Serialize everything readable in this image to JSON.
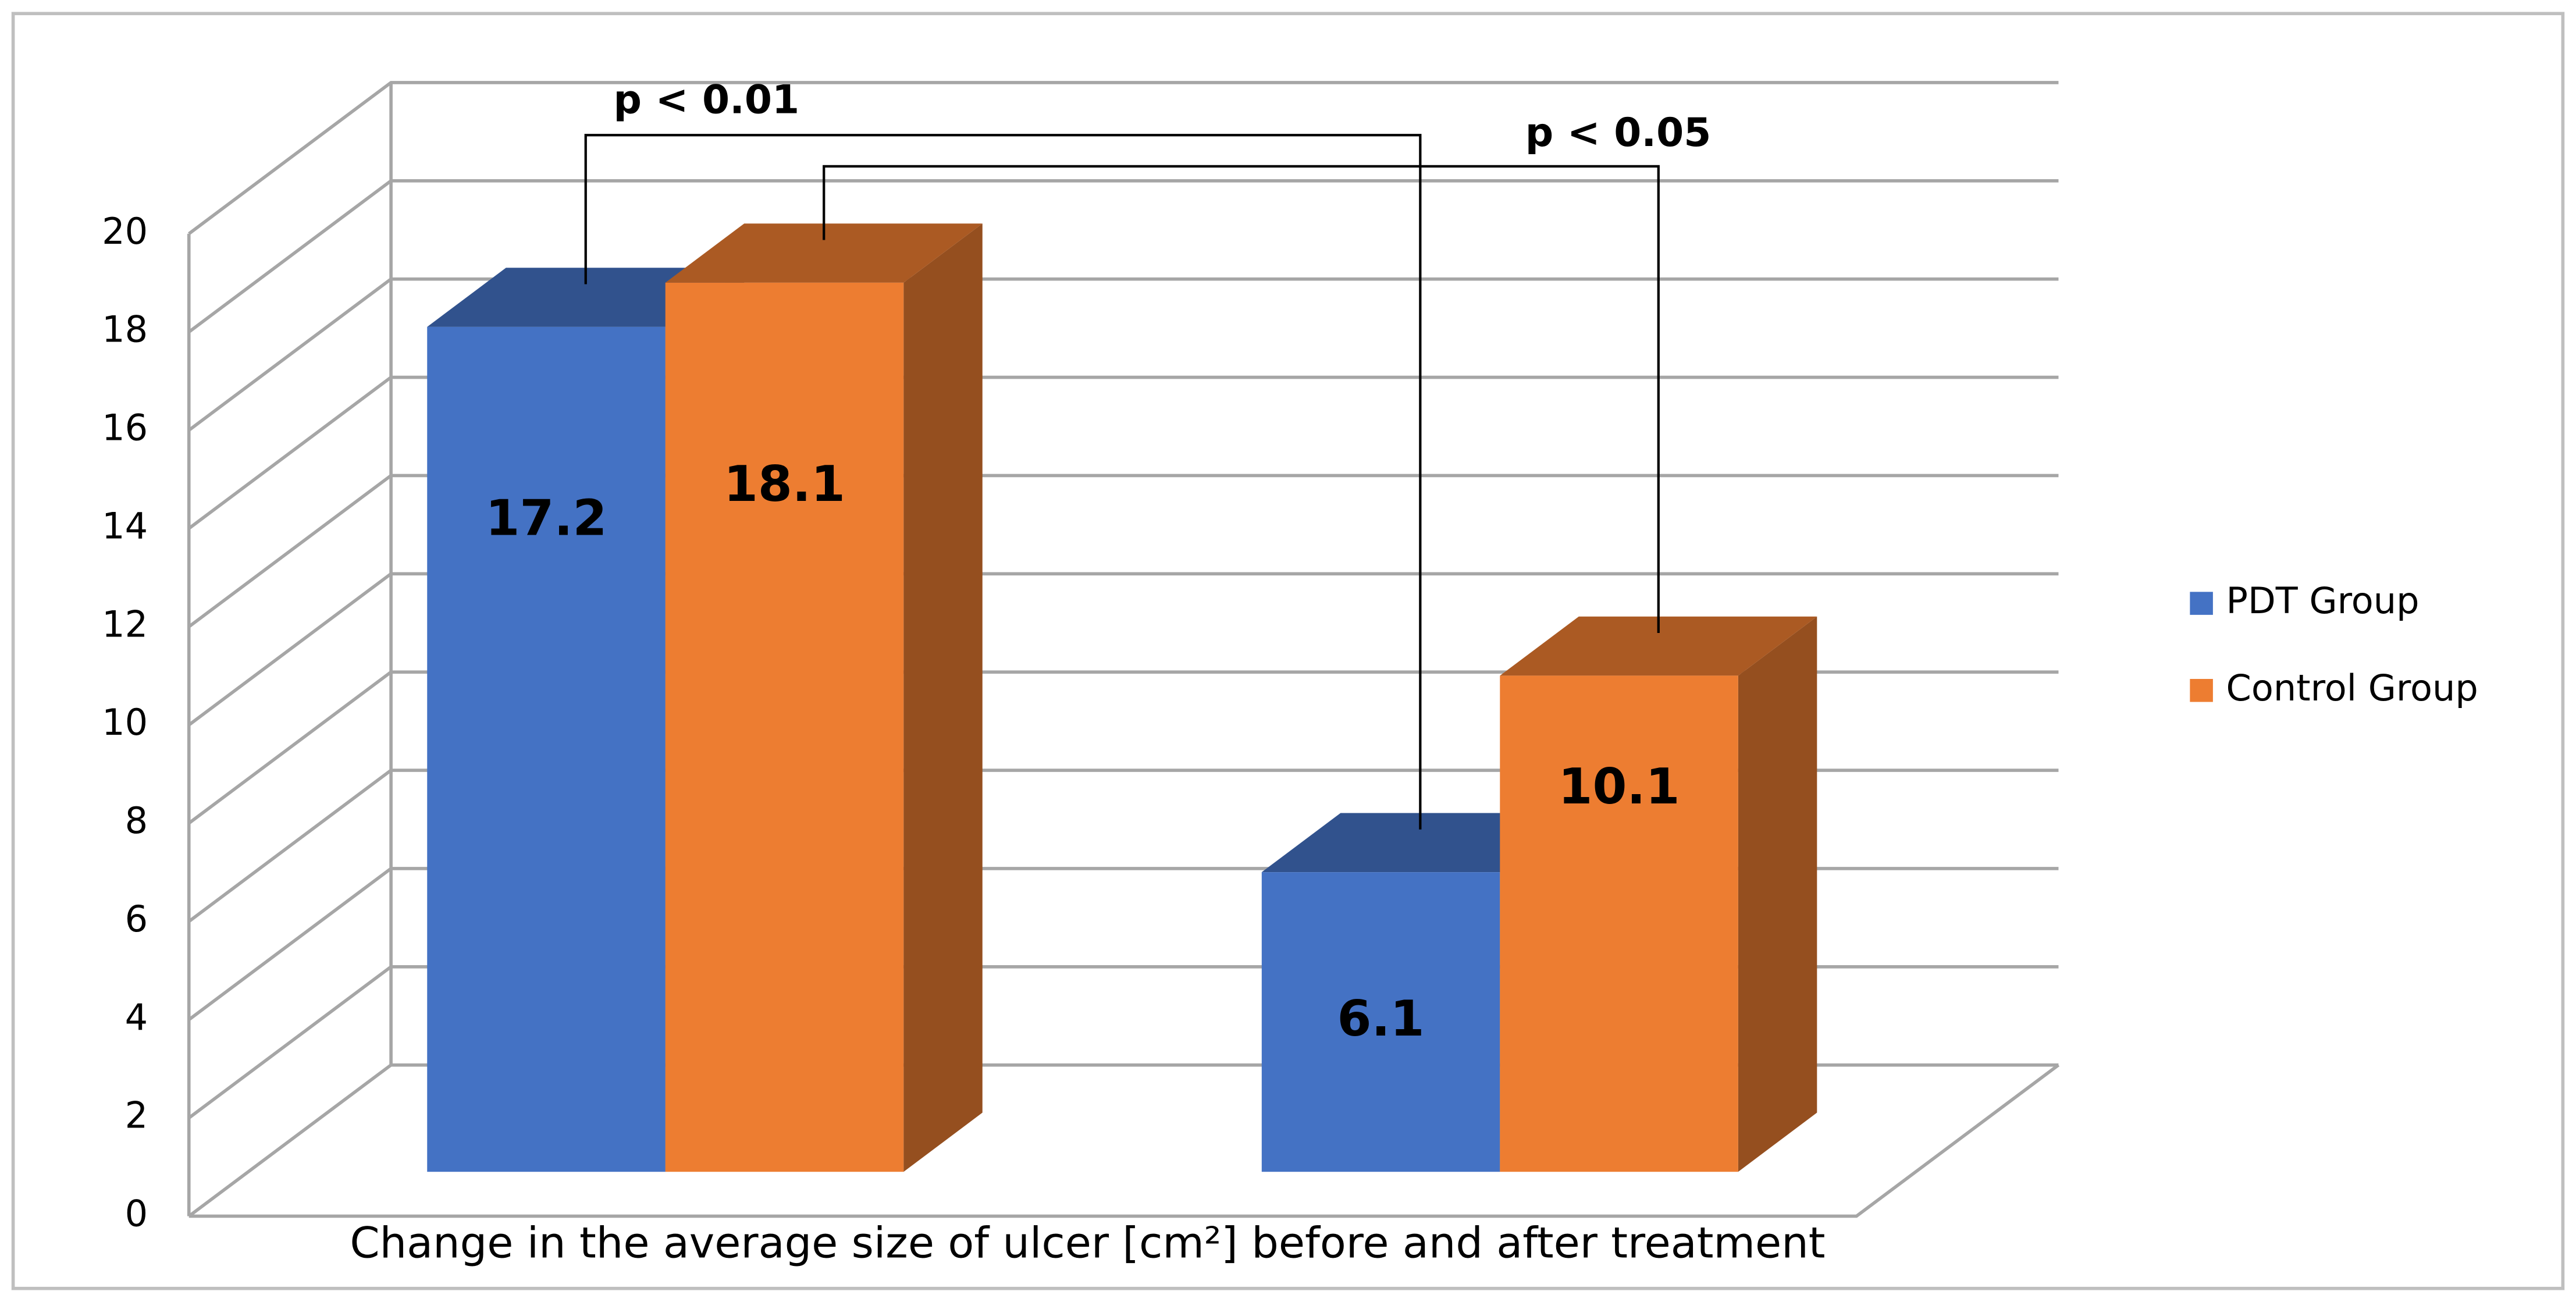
{
  "chart_data": {
    "type": "bar3d",
    "x_label": "Change in the average size of ulcer [cm²] before and after treatment",
    "categories": [
      null,
      null
    ],
    "series": [
      {
        "name": "PDT Group",
        "color": "#4472c4",
        "values": [
          17.2,
          6.1
        ]
      },
      {
        "name": "Control Group",
        "color": "#ed7d31",
        "values": [
          18.1,
          10.1
        ]
      }
    ],
    "annotations": [
      "p < 0.01",
      "p < 0.05"
    ],
    "ylim": [
      0,
      20
    ],
    "yticks": [
      0,
      2,
      4,
      6,
      8,
      10,
      12,
      14,
      16,
      18,
      20
    ],
    "grid": true,
    "legend": "right"
  }
}
